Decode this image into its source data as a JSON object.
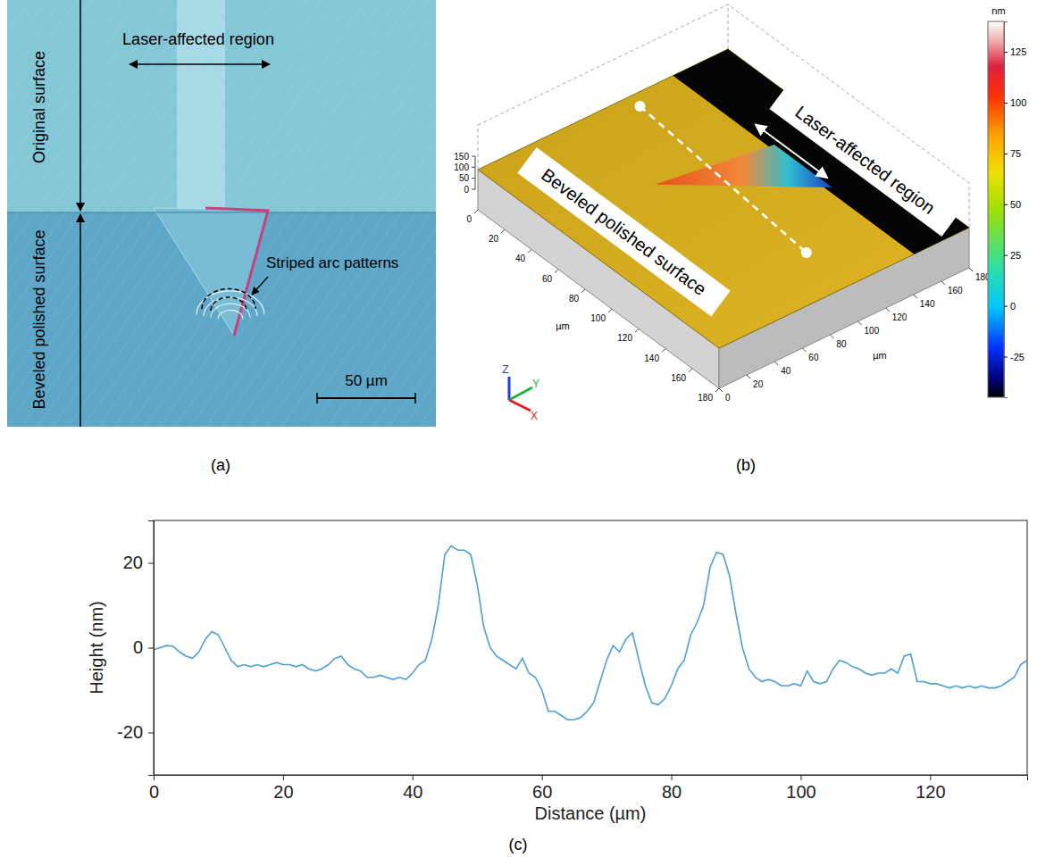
{
  "chart_data": {
    "type": "line",
    "label": "(c)",
    "xlabel": "Distance (µm)",
    "ylabel": "Height (nm)",
    "x": [
      0,
      1,
      2,
      3,
      4,
      5,
      6,
      7,
      8,
      9,
      10,
      11,
      12,
      13,
      14,
      15,
      16,
      17,
      18,
      19,
      20,
      21,
      22,
      23,
      24,
      25,
      26,
      27,
      28,
      29,
      30,
      31,
      32,
      33,
      34,
      35,
      36,
      37,
      38,
      39,
      40,
      41,
      42,
      43,
      44,
      45,
      46,
      47,
      48,
      49,
      50,
      51,
      52,
      53,
      54,
      55,
      56,
      57,
      58,
      59,
      60,
      61,
      62,
      63,
      64,
      65,
      66,
      67,
      68,
      69,
      70,
      71,
      72,
      73,
      74,
      75,
      76,
      77,
      78,
      79,
      80,
      81,
      82,
      83,
      84,
      85,
      86,
      87,
      88,
      89,
      90,
      91,
      92,
      93,
      94,
      95,
      96,
      97,
      98,
      99,
      100,
      101,
      102,
      103,
      104,
      105,
      106,
      107,
      108,
      109,
      110,
      111,
      112,
      113,
      114,
      115,
      116,
      117,
      118,
      119,
      120,
      121,
      122,
      123,
      124,
      125,
      126,
      127,
      128,
      129,
      130,
      131,
      132,
      133,
      134,
      135
    ],
    "series": [
      {
        "color": "#4d9fd6",
        "values": [
          -0.5,
          0,
          0.5,
          0.3,
          -1,
          -2,
          -2.5,
          -1,
          2,
          3.8,
          3,
          0,
          -3,
          -4.5,
          -4,
          -4.5,
          -4,
          -4.5,
          -4,
          -3.5,
          -4,
          -4,
          -4.5,
          -4,
          -5,
          -5.5,
          -5,
          -4,
          -2.5,
          -2,
          -4,
          -5,
          -5.5,
          -7,
          -7,
          -6.5,
          -7,
          -7.5,
          -7,
          -7.5,
          -6,
          -4,
          -3,
          2,
          10,
          22,
          24,
          23,
          23,
          22,
          15,
          5,
          0,
          -2,
          -3,
          -4,
          -5,
          -2.5,
          -6,
          -7,
          -10,
          -15,
          -15,
          -16,
          -17,
          -17,
          -16.5,
          -15,
          -13,
          -8,
          -3,
          0.5,
          -1,
          2,
          3.5,
          -3,
          -9,
          -13,
          -13.5,
          -12,
          -9,
          -5,
          -3,
          3,
          6,
          10,
          19,
          22.5,
          22,
          17,
          8,
          0,
          -5,
          -7,
          -8,
          -7.5,
          -8,
          -9,
          -9,
          -8.5,
          -9,
          -5.5,
          -8,
          -8.5,
          -8,
          -5,
          -3,
          -3.5,
          -4.5,
          -5,
          -6,
          -6.5,
          -6,
          -6,
          -5,
          -6,
          -2,
          -1.5,
          -8,
          -8,
          -8.5,
          -8.5,
          -9,
          -9.5,
          -9,
          -9.5,
          -9,
          -9.5,
          -9,
          -9.5,
          -9.5,
          -9,
          -8,
          -7,
          -4,
          -3
        ]
      }
    ],
    "xlim": [
      0,
      135
    ],
    "ylim": [
      -30,
      30
    ],
    "xticks": [
      0,
      20,
      40,
      60,
      80,
      100,
      120
    ],
    "yticks": [
      -20,
      0,
      20
    ],
    "grid": false
  },
  "panel_a": {
    "label": "(a)",
    "laser_region": "Laser-affected  region",
    "original_surface": "Original surface",
    "beveled_surface": "Beveled polished surface",
    "arc_patterns": "Striped arc patterns",
    "scale_bar": "50 µm"
  },
  "panel_b": {
    "label": "(b)",
    "laser_region": "Laser-affected  region",
    "beveled_surface": "Beveled polished surface",
    "xlim": [
      0,
      180
    ],
    "x_ticks": [
      0,
      20,
      40,
      60,
      80,
      100,
      120,
      140,
      160,
      180
    ],
    "x_unit": "µm",
    "ylim": [
      0,
      180
    ],
    "y_ticks": [
      0,
      20,
      40,
      60,
      80,
      100,
      120,
      140,
      160,
      180
    ],
    "y_unit": "µm",
    "zlim": [
      0,
      150
    ],
    "z_ticks": [
      0,
      50,
      100,
      150
    ],
    "axis_names": [
      "Z",
      "Y",
      "X"
    ],
    "colorbar": {
      "title": "nm",
      "range": [
        -45,
        140
      ],
      "ticks": [
        125,
        100,
        75,
        50,
        25,
        0,
        -25
      ]
    }
  }
}
